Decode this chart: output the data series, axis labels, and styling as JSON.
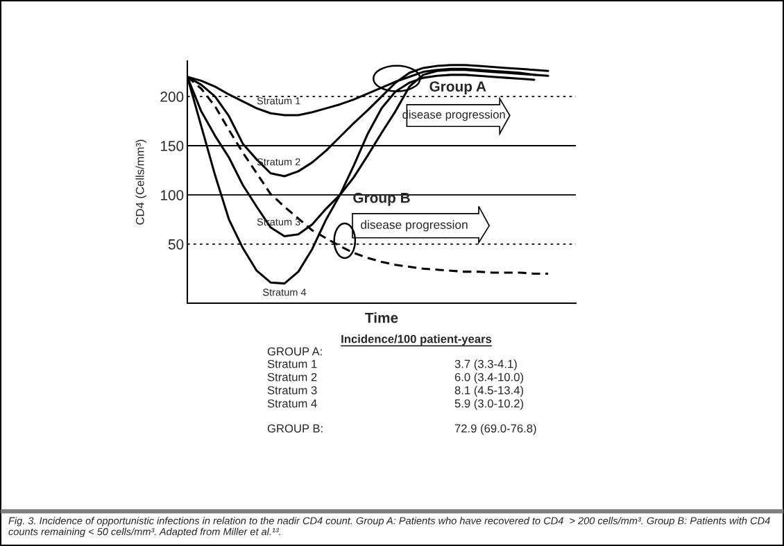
{
  "chart_data": {
    "type": "line",
    "xlabel": "Time",
    "ylabel": "CD4 (Cells/mm³)",
    "categories": [
      null,
      null,
      null,
      null,
      null,
      null,
      null,
      null,
      null,
      null,
      null,
      null,
      null,
      null,
      null,
      null,
      null,
      null,
      null,
      null,
      null,
      null,
      null,
      null,
      null,
      null,
      null,
      null,
      null
    ],
    "series": [
      {
        "name": "Stratum 1",
        "color": "#000000",
        "line_style": "solid",
        "values": [
          220,
          216,
          210,
          202,
          195,
          188,
          183,
          181,
          181,
          184,
          188,
          192,
          197,
          203,
          209,
          215,
          220,
          225,
          227,
          228,
          228,
          227,
          226,
          225,
          224,
          222,
          null,
          null,
          null
        ]
      },
      {
        "name": "Stratum 2",
        "color": "#000000",
        "line_style": "solid",
        "values": [
          220,
          212,
          200,
          180,
          152,
          136,
          122,
          119,
          124,
          133,
          145,
          159,
          173,
          186,
          200,
          214,
          224,
          229,
          231,
          232,
          232,
          231,
          230,
          229,
          228,
          227,
          226,
          null,
          null
        ]
      },
      {
        "name": "Stratum 3",
        "color": "#000000",
        "line_style": "solid",
        "values": [
          220,
          185,
          160,
          138,
          110,
          88,
          67,
          58,
          60,
          70,
          86,
          100,
          118,
          140,
          163,
          185,
          210,
          222,
          226,
          227,
          227,
          226,
          225,
          224,
          223,
          222,
          221,
          null,
          null
        ]
      },
      {
        "name": "Stratum 4",
        "color": "#000000",
        "line_style": "solid",
        "values": [
          220,
          170,
          120,
          75,
          46,
          23,
          11,
          10,
          22,
          45,
          75,
          100,
          130,
          162,
          188,
          205,
          214,
          219,
          221,
          222,
          222,
          221,
          220,
          219,
          218,
          217,
          null,
          null,
          null
        ]
      },
      {
        "color": "#000000",
        "line_style": "dashed",
        "values": [
          220,
          208,
          190,
          166,
          143,
          122,
          101,
          88,
          76,
          64,
          56,
          48,
          41,
          36,
          32,
          29,
          27,
          25,
          24,
          23,
          22,
          22,
          21,
          21,
          21,
          20,
          20,
          null,
          null
        ]
      }
    ],
    "ylim": [
      -10,
      236
    ],
    "yticks": [
      50,
      100,
      150,
      200
    ],
    "legend": false,
    "grid": false,
    "ref_lines": [
      {
        "axis": "y",
        "value": 200,
        "line_style": "dotted",
        "color": "#000000"
      },
      {
        "axis": "y",
        "value": 150,
        "line_style": "solid",
        "color": "#000000"
      },
      {
        "axis": "y",
        "value": 100,
        "line_style": "solid",
        "color": "#000000"
      },
      {
        "axis": "y",
        "value": 50,
        "line_style": "dotted",
        "color": "#000000"
      }
    ],
    "annotations": [
      "Group A",
      "disease progression",
      "Group B",
      "disease progression",
      "Incidence/100 patient-years",
      "GROUP A:",
      "Stratum 1",
      "3.7 (3.3-4.1)",
      "Stratum 2",
      "6.0 (3.4-10.0)",
      "Stratum 3",
      "8.1 (4.5-13.4)",
      "Stratum 4",
      "5.9 (3.0-10.2)",
      "GROUP B:",
      "72.9 (69.0-76.8)",
      "Fig. 3. Incidence of opportunistic infections in relation to the nadir CD4 count. Group A: Patients who have recovered to CD4  > 200 cells/mm³. Group B: Patients with CD4 counts remaining < 50 cells/mm³. Adapted from Miller et al.¹³."
    ]
  }
}
